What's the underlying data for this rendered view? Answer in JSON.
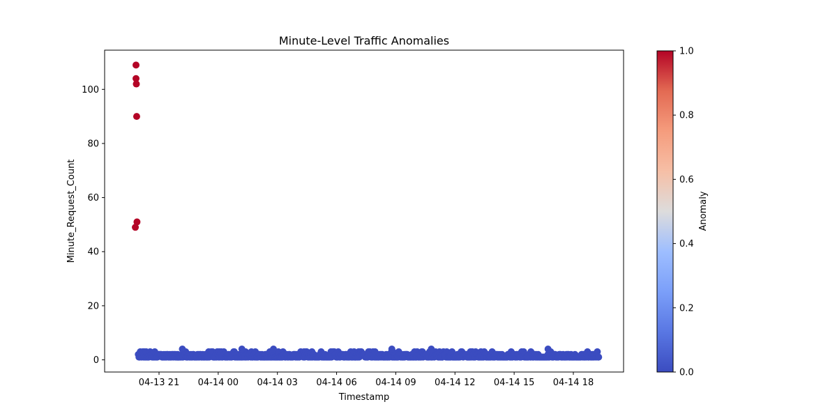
{
  "chart_data": {
    "type": "scatter",
    "title": "Minute-Level Traffic Anomalies",
    "xlabel": "Timestamp",
    "ylabel": "Minute_Request_Count",
    "x_ticks": [
      "04-13 21",
      "04-14 00",
      "04-14 03",
      "04-14 06",
      "04-14 09",
      "04-14 12",
      "04-14 15",
      "04-14 18"
    ],
    "y_ticks": [
      "0",
      "20",
      "40",
      "60",
      "80",
      "100"
    ],
    "ylim": [
      -4.5,
      114.5
    ],
    "grid": false,
    "colorbar": {
      "label": "Anomaly",
      "colormap": "coolwarm",
      "range": [
        0.0,
        1.0
      ],
      "ticks": [
        "0.0",
        "0.2",
        "0.4",
        "0.6",
        "0.8",
        "1.0"
      ],
      "low_color": "#3b4cc0",
      "high_color": "#b40426"
    },
    "anomalies": [
      {
        "time": "04-13 19:50",
        "count": 109,
        "anomaly": 1
      },
      {
        "time": "04-13 19:50",
        "count": 104,
        "anomaly": 1
      },
      {
        "time": "04-13 19:51",
        "count": 102,
        "anomaly": 1
      },
      {
        "time": "04-13 19:52",
        "count": 90,
        "anomaly": 1
      },
      {
        "time": "04-13 19:53",
        "count": 51,
        "anomaly": 1
      },
      {
        "time": "04-13 19:48",
        "count": 49,
        "anomaly": 1
      }
    ],
    "normal_series": {
      "name": "normal",
      "anomaly": 0,
      "time_range": [
        "04-13 19:57",
        "04-14 19:18"
      ],
      "count_range": [
        1,
        4
      ],
      "peaks": [
        {
          "time": "04-13 22:11",
          "count": 4
        },
        {
          "time": "04-14 01:12",
          "count": 4
        },
        {
          "time": "04-14 02:48",
          "count": 4
        },
        {
          "time": "04-14 08:48",
          "count": 4
        },
        {
          "time": "04-14 10:48",
          "count": 4
        },
        {
          "time": "04-14 16:43",
          "count": 4
        }
      ]
    }
  }
}
